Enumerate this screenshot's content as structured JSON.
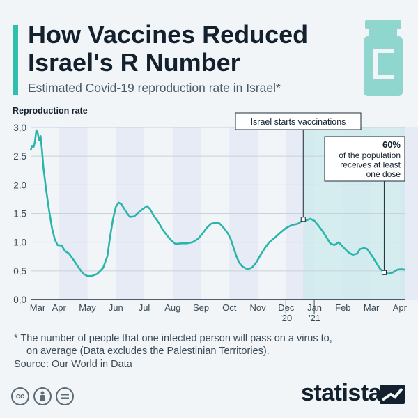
{
  "header": {
    "title_line1": "How Vaccines Reduced",
    "title_line2": "Israel's R Number",
    "subtitle": "Estimated Covid-19 reproduction rate in Israel*"
  },
  "colors": {
    "accent": "#2ebfad",
    "line": "#2bb5aa",
    "band": "#e6ebf5",
    "highlight": "#cce9ec",
    "text": "#13212e"
  },
  "chart_data": {
    "type": "line",
    "ylabel": "Reproduction rate",
    "ylim": [
      0,
      3
    ],
    "yticks": [
      "0,0",
      "0,5",
      "1,0",
      "1,5",
      "2,0",
      "2,5",
      "3,0"
    ],
    "xlabels": [
      {
        "text": "Mar",
        "sub": ""
      },
      {
        "text": "Apr",
        "sub": ""
      },
      {
        "text": "May",
        "sub": ""
      },
      {
        "text": "Jun",
        "sub": ""
      },
      {
        "text": "Jul",
        "sub": ""
      },
      {
        "text": "Aug",
        "sub": ""
      },
      {
        "text": "Sep",
        "sub": ""
      },
      {
        "text": "Oct",
        "sub": ""
      },
      {
        "text": "Nov",
        "sub": ""
      },
      {
        "text": "Dec",
        "sub": "'20"
      },
      {
        "text": "Jan",
        "sub": "'21"
      },
      {
        "text": "Feb",
        "sub": ""
      },
      {
        "text": "Mar",
        "sub": ""
      },
      {
        "text": "Apr",
        "sub": ""
      }
    ],
    "x_unit": "month index (0 = start of Mar 2020)",
    "series": [
      {
        "values": [
          [
            0.0,
            2.6
          ],
          [
            0.05,
            2.68
          ],
          [
            0.1,
            2.66
          ],
          [
            0.15,
            2.75
          ],
          [
            0.2,
            2.95
          ],
          [
            0.25,
            2.9
          ],
          [
            0.3,
            2.78
          ],
          [
            0.35,
            2.85
          ],
          [
            0.4,
            2.6
          ],
          [
            0.45,
            2.3
          ],
          [
            0.55,
            1.9
          ],
          [
            0.65,
            1.55
          ],
          [
            0.75,
            1.25
          ],
          [
            0.85,
            1.05
          ],
          [
            0.95,
            0.95
          ],
          [
            1.1,
            0.94
          ],
          [
            1.2,
            0.85
          ],
          [
            1.35,
            0.8
          ],
          [
            1.5,
            0.7
          ],
          [
            1.7,
            0.55
          ],
          [
            1.85,
            0.45
          ],
          [
            2.0,
            0.41
          ],
          [
            2.15,
            0.41
          ],
          [
            2.35,
            0.45
          ],
          [
            2.55,
            0.55
          ],
          [
            2.7,
            0.75
          ],
          [
            2.8,
            1.1
          ],
          [
            2.9,
            1.4
          ],
          [
            3.0,
            1.62
          ],
          [
            3.1,
            1.69
          ],
          [
            3.2,
            1.66
          ],
          [
            3.3,
            1.58
          ],
          [
            3.4,
            1.5
          ],
          [
            3.5,
            1.44
          ],
          [
            3.65,
            1.45
          ],
          [
            3.8,
            1.52
          ],
          [
            3.95,
            1.58
          ],
          [
            4.1,
            1.63
          ],
          [
            4.2,
            1.58
          ],
          [
            4.35,
            1.45
          ],
          [
            4.5,
            1.35
          ],
          [
            4.65,
            1.22
          ],
          [
            4.8,
            1.12
          ],
          [
            4.95,
            1.03
          ],
          [
            5.1,
            0.97
          ],
          [
            5.3,
            0.98
          ],
          [
            5.5,
            0.98
          ],
          [
            5.7,
            1.0
          ],
          [
            5.9,
            1.06
          ],
          [
            6.05,
            1.15
          ],
          [
            6.2,
            1.25
          ],
          [
            6.35,
            1.32
          ],
          [
            6.5,
            1.34
          ],
          [
            6.65,
            1.33
          ],
          [
            6.8,
            1.25
          ],
          [
            6.95,
            1.15
          ],
          [
            7.05,
            1.05
          ],
          [
            7.15,
            0.9
          ],
          [
            7.25,
            0.75
          ],
          [
            7.35,
            0.64
          ],
          [
            7.45,
            0.58
          ],
          [
            7.55,
            0.55
          ],
          [
            7.65,
            0.53
          ],
          [
            7.8,
            0.56
          ],
          [
            7.95,
            0.65
          ],
          [
            8.1,
            0.78
          ],
          [
            8.25,
            0.9
          ],
          [
            8.4,
            1.0
          ],
          [
            8.6,
            1.08
          ],
          [
            8.8,
            1.17
          ],
          [
            9.0,
            1.25
          ],
          [
            9.2,
            1.3
          ],
          [
            9.4,
            1.32
          ],
          [
            9.5,
            1.35
          ],
          [
            9.6,
            1.4
          ],
          [
            9.7,
            1.38
          ],
          [
            9.85,
            1.41
          ],
          [
            10.0,
            1.37
          ],
          [
            10.15,
            1.28
          ],
          [
            10.3,
            1.18
          ],
          [
            10.45,
            1.06
          ],
          [
            10.55,
            0.98
          ],
          [
            10.7,
            0.95
          ],
          [
            10.85,
            1.0
          ],
          [
            11.0,
            0.92
          ],
          [
            11.2,
            0.82
          ],
          [
            11.35,
            0.78
          ],
          [
            11.5,
            0.8
          ],
          [
            11.6,
            0.88
          ],
          [
            11.75,
            0.9
          ],
          [
            11.85,
            0.88
          ],
          [
            12.0,
            0.78
          ],
          [
            12.15,
            0.66
          ],
          [
            12.3,
            0.54
          ],
          [
            12.45,
            0.47
          ],
          [
            12.6,
            0.45
          ],
          [
            12.75,
            0.47
          ],
          [
            12.9,
            0.52
          ],
          [
            13.05,
            0.53
          ],
          [
            13.2,
            0.52
          ]
        ]
      }
    ],
    "annotations": [
      {
        "text": "Israel starts vaccinations",
        "x": 9.6,
        "y": 1.4
      },
      {
        "bold": "60%",
        "lines": [
          "of the population",
          "receives at least",
          "one dose"
        ],
        "x": 12.45,
        "y": 0.47
      }
    ],
    "grid": true
  },
  "footer": {
    "note_line1": "* The number of people that one infected person will pass on a virus to,",
    "note_line2": "on average (Data excludes the Palestinian Territories).",
    "source": "Source: Our World in Data",
    "brand": "statista",
    "license_icons": [
      "cc-icon",
      "person-icon",
      "equals-icon"
    ]
  }
}
